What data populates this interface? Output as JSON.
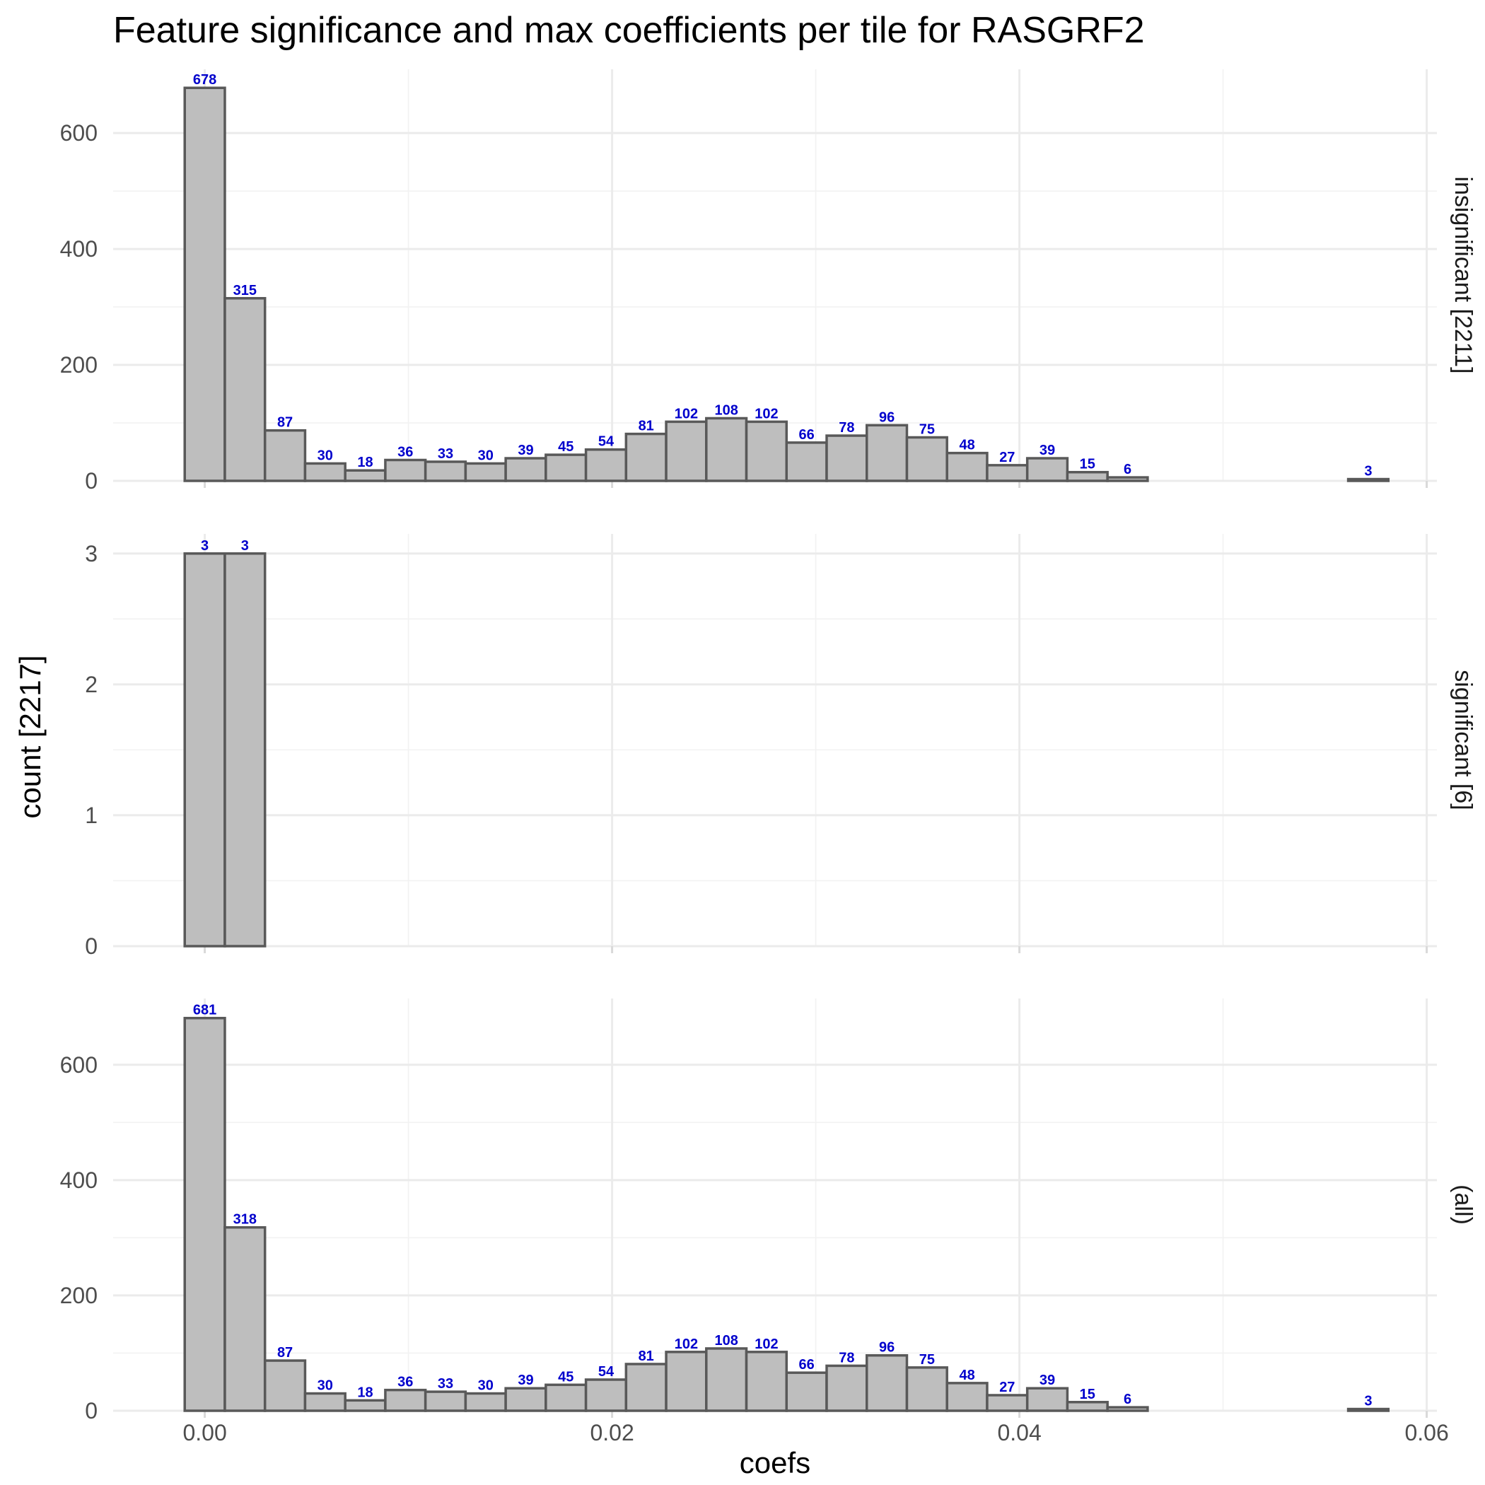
{
  "chart_data": {
    "type": "bar",
    "title": "Feature significance and max coefficients per tile for RASGRF2",
    "xlabel": "coefs",
    "ylabel": "count [2217]",
    "xlim": [
      -0.0045,
      0.0605
    ],
    "x_ticks": [
      "0.00",
      "0.02",
      "0.04",
      "0.06"
    ],
    "x_tick_values": [
      0.0,
      0.02,
      0.04,
      0.06
    ],
    "grid": true,
    "bin_width": 0.00197,
    "bin_start": -0.000985,
    "panels": [
      {
        "name": "insignificant [2211]",
        "ylim": [
          0,
          710
        ],
        "y_ticks": [
          0,
          200,
          400,
          600
        ],
        "counts": [
          678,
          315,
          87,
          30,
          18,
          36,
          33,
          30,
          39,
          45,
          54,
          81,
          102,
          108,
          102,
          66,
          78,
          96,
          75,
          48,
          27,
          39,
          15,
          6,
          0,
          0,
          0,
          0,
          0,
          3
        ],
        "labels": [
          "678",
          "315",
          "87",
          "30",
          "18",
          "36",
          "33",
          "30",
          "39",
          "45",
          "54",
          "81",
          "102",
          "108",
          "102",
          "66",
          "78",
          "96",
          "75",
          "48",
          "27",
          "39",
          "15",
          "6",
          "",
          "",
          "",
          "",
          "",
          "3"
        ]
      },
      {
        "name": "significant [6]",
        "ylim": [
          0,
          3.15
        ],
        "y_ticks": [
          0,
          1,
          2,
          3
        ],
        "counts": [
          3,
          3,
          0,
          0,
          0,
          0,
          0,
          0,
          0,
          0,
          0,
          0,
          0,
          0,
          0,
          0,
          0,
          0,
          0,
          0,
          0,
          0,
          0,
          0,
          0,
          0,
          0,
          0,
          0,
          0
        ],
        "labels": [
          "3",
          "3",
          "",
          "",
          "",
          "",
          "",
          "",
          "",
          "",
          "",
          "",
          "",
          "",
          "",
          "",
          "",
          "",
          "",
          "",
          "",
          "",
          "",
          "",
          "",
          "",
          "",
          "",
          "",
          ""
        ]
      },
      {
        "name": "(all)",
        "ylim": [
          0,
          715
        ],
        "y_ticks": [
          0,
          200,
          400,
          600
        ],
        "counts": [
          681,
          318,
          87,
          30,
          18,
          36,
          33,
          30,
          39,
          45,
          54,
          81,
          102,
          108,
          102,
          66,
          78,
          96,
          75,
          48,
          27,
          39,
          15,
          6,
          0,
          0,
          0,
          0,
          0,
          3
        ],
        "labels": [
          "681",
          "318",
          "87",
          "30",
          "18",
          "36",
          "33",
          "30",
          "39",
          "45",
          "54",
          "81",
          "102",
          "108",
          "102",
          "66",
          "78",
          "96",
          "75",
          "48",
          "27",
          "39",
          "15",
          "6",
          "",
          "",
          "",
          "",
          "",
          "3"
        ]
      }
    ],
    "colors": {
      "bar_fill": "#bebebe",
      "bar_outline": "#595959",
      "label_color": "#0000cc",
      "grid": "#ebebeb"
    }
  }
}
